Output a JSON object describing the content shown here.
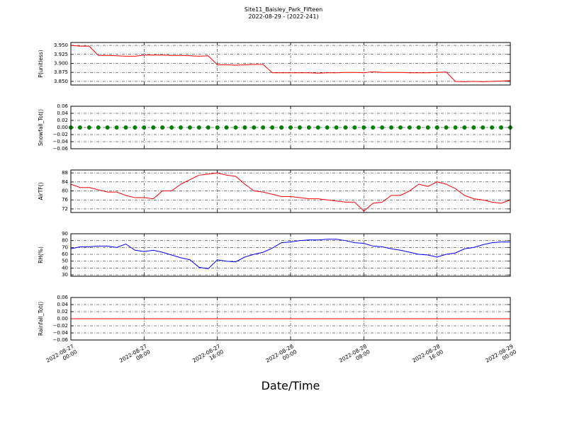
{
  "title": "Site11_Baisley_Park_Fifteen",
  "subtitle": "2022-08-29 - (2022-241)",
  "x_label": "Date/Time",
  "chart_data": [
    {
      "type": "line",
      "y_label": "P(unitless)",
      "grid": true,
      "x": [
        "2022-08-27 00:00",
        "2022-08-27 01:00",
        "2022-08-27 02:00",
        "2022-08-27 03:00",
        "2022-08-27 04:00",
        "2022-08-27 05:00",
        "2022-08-27 06:00",
        "2022-08-27 07:00",
        "2022-08-27 08:00",
        "2022-08-27 09:00",
        "2022-08-27 10:00",
        "2022-08-27 11:00",
        "2022-08-27 12:00",
        "2022-08-27 13:00",
        "2022-08-27 14:00",
        "2022-08-27 15:00",
        "2022-08-27 16:00",
        "2022-08-27 17:00",
        "2022-08-27 18:00",
        "2022-08-27 19:00",
        "2022-08-27 20:00",
        "2022-08-27 21:00",
        "2022-08-27 22:00",
        "2022-08-27 23:00",
        "2022-08-28 00:00",
        "2022-08-28 01:00",
        "2022-08-28 02:00",
        "2022-08-28 03:00",
        "2022-08-28 04:00",
        "2022-08-28 05:00",
        "2022-08-28 06:00",
        "2022-08-28 07:00",
        "2022-08-28 08:00",
        "2022-08-28 09:00",
        "2022-08-28 10:00",
        "2022-08-28 11:00",
        "2022-08-28 12:00",
        "2022-08-28 13:00",
        "2022-08-28 14:00",
        "2022-08-28 15:00",
        "2022-08-28 16:00",
        "2022-08-28 17:00",
        "2022-08-28 18:00",
        "2022-08-28 19:00",
        "2022-08-28 20:00",
        "2022-08-28 21:00",
        "2022-08-28 22:00",
        "2022-08-28 23:00",
        "2022-08-29 00:00"
      ],
      "series": [
        {
          "color": "#ff0000",
          "values": [
            3.95,
            3.948,
            3.948,
            3.922,
            3.922,
            3.921,
            3.92,
            3.92,
            3.923,
            3.923,
            3.923,
            3.922,
            3.922,
            3.921,
            3.92,
            3.921,
            3.896,
            3.896,
            3.895,
            3.896,
            3.897,
            3.897,
            3.874,
            3.874,
            3.874,
            3.874,
            3.874,
            3.873,
            3.874,
            3.874,
            3.875,
            3.875,
            3.874,
            3.877,
            3.875,
            3.875,
            3.875,
            3.874,
            3.874,
            3.874,
            3.875,
            3.876,
            3.85,
            3.849,
            3.85,
            3.849,
            3.85,
            3.851,
            3.852
          ]
        }
      ],
      "xlim": [
        "2022-08-27 00:00",
        "2022-08-29 00:00"
      ],
      "xticks": [
        "2022-08-27 00:00",
        "2022-08-27 08:00",
        "2022-08-27 16:00",
        "2022-08-28 00:00",
        "2022-08-28 08:00",
        "2022-08-28 16:00",
        "2022-08-29 00:00"
      ],
      "ylim": [
        3.84,
        3.958
      ],
      "yticks": [
        {
          "value": 3.85,
          "label": "3.850"
        },
        {
          "value": 3.875,
          "label": "3.875"
        },
        {
          "value": 3.9,
          "label": "3.900"
        },
        {
          "value": 3.925,
          "label": "3.925"
        },
        {
          "value": 3.95,
          "label": "3.950"
        }
      ]
    },
    {
      "type": "scatter",
      "y_label": "Snowfall_Tot()",
      "grid": true,
      "x": [
        "2022-08-27 00:00",
        "2022-08-27 01:00",
        "2022-08-27 02:00",
        "2022-08-27 03:00",
        "2022-08-27 04:00",
        "2022-08-27 05:00",
        "2022-08-27 06:00",
        "2022-08-27 07:00",
        "2022-08-27 08:00",
        "2022-08-27 09:00",
        "2022-08-27 10:00",
        "2022-08-27 11:00",
        "2022-08-27 12:00",
        "2022-08-27 13:00",
        "2022-08-27 14:00",
        "2022-08-27 15:00",
        "2022-08-27 16:00",
        "2022-08-27 17:00",
        "2022-08-27 18:00",
        "2022-08-27 19:00",
        "2022-08-27 20:00",
        "2022-08-27 21:00",
        "2022-08-27 22:00",
        "2022-08-27 23:00",
        "2022-08-28 00:00",
        "2022-08-28 01:00",
        "2022-08-28 02:00",
        "2022-08-28 03:00",
        "2022-08-28 04:00",
        "2022-08-28 05:00",
        "2022-08-28 06:00",
        "2022-08-28 07:00",
        "2022-08-28 08:00",
        "2022-08-28 09:00",
        "2022-08-28 10:00",
        "2022-08-28 11:00",
        "2022-08-28 12:00",
        "2022-08-28 13:00",
        "2022-08-28 14:00",
        "2022-08-28 15:00",
        "2022-08-28 16:00",
        "2022-08-28 17:00",
        "2022-08-28 18:00",
        "2022-08-28 19:00",
        "2022-08-28 20:00",
        "2022-08-28 21:00",
        "2022-08-28 22:00",
        "2022-08-28 23:00",
        "2022-08-29 00:00"
      ],
      "series": [
        {
          "color": "#008000",
          "values": [
            0,
            0,
            0,
            0,
            0,
            0,
            0,
            0,
            0,
            0,
            0,
            0,
            0,
            0,
            0,
            0,
            0,
            0,
            0,
            0,
            0,
            0,
            0,
            0,
            0,
            0,
            0,
            0,
            0,
            0,
            0,
            0,
            0,
            0,
            0,
            0,
            0,
            0,
            0,
            0,
            0,
            0,
            0,
            0,
            0,
            0,
            0,
            0,
            0
          ]
        }
      ],
      "xlim": [
        "2022-08-27 00:00",
        "2022-08-29 00:00"
      ],
      "xticks": [
        "2022-08-27 00:00",
        "2022-08-27 08:00",
        "2022-08-27 16:00",
        "2022-08-28 00:00",
        "2022-08-28 08:00",
        "2022-08-28 16:00",
        "2022-08-29 00:00"
      ],
      "ylim": [
        -0.06,
        0.06
      ],
      "yticks": [
        {
          "value": -0.06,
          "label": "−0.06"
        },
        {
          "value": -0.04,
          "label": "−0.04"
        },
        {
          "value": -0.02,
          "label": "−0.02"
        },
        {
          "value": 0,
          "label": "0.00"
        },
        {
          "value": 0.02,
          "label": "0.02"
        },
        {
          "value": 0.04,
          "label": "0.04"
        },
        {
          "value": 0.06,
          "label": "0.06"
        }
      ]
    },
    {
      "type": "line",
      "y_label": "AirTF()",
      "grid": true,
      "x": [
        "2022-08-27 00:00",
        "2022-08-27 01:00",
        "2022-08-27 02:00",
        "2022-08-27 03:00",
        "2022-08-27 04:00",
        "2022-08-27 05:00",
        "2022-08-27 06:00",
        "2022-08-27 07:00",
        "2022-08-27 08:00",
        "2022-08-27 09:00",
        "2022-08-27 10:00",
        "2022-08-27 11:00",
        "2022-08-27 12:00",
        "2022-08-27 13:00",
        "2022-08-27 14:00",
        "2022-08-27 15:00",
        "2022-08-27 16:00",
        "2022-08-27 17:00",
        "2022-08-27 18:00",
        "2022-08-27 19:00",
        "2022-08-27 20:00",
        "2022-08-27 21:00",
        "2022-08-27 22:00",
        "2022-08-27 23:00",
        "2022-08-28 00:00",
        "2022-08-28 01:00",
        "2022-08-28 02:00",
        "2022-08-28 03:00",
        "2022-08-28 04:00",
        "2022-08-28 05:00",
        "2022-08-28 06:00",
        "2022-08-28 07:00",
        "2022-08-28 08:00",
        "2022-08-28 09:00",
        "2022-08-28 10:00",
        "2022-08-28 11:00",
        "2022-08-28 12:00",
        "2022-08-28 13:00",
        "2022-08-28 14:00",
        "2022-08-28 15:00",
        "2022-08-28 16:00",
        "2022-08-28 17:00",
        "2022-08-28 18:00",
        "2022-08-28 19:00",
        "2022-08-28 20:00",
        "2022-08-28 21:00",
        "2022-08-28 22:00",
        "2022-08-28 23:00",
        "2022-08-29 00:00"
      ],
      "series": [
        {
          "color": "#ff0000",
          "values": [
            83,
            81.5,
            81.5,
            80.5,
            79.5,
            79.5,
            78,
            77,
            77,
            76.5,
            80,
            80,
            83,
            85,
            87,
            87.5,
            88,
            87,
            86.5,
            83,
            80,
            79.5,
            78.5,
            77.5,
            77.5,
            77,
            76.5,
            76.5,
            76,
            75.5,
            75,
            75,
            71,
            74.5,
            75,
            78,
            78,
            80,
            83,
            82,
            84,
            83,
            81,
            78,
            76.5,
            76,
            75,
            74.5,
            76
          ]
        }
      ],
      "xlim": [
        "2022-08-27 00:00",
        "2022-08-29 00:00"
      ],
      "xticks": [
        "2022-08-27 00:00",
        "2022-08-27 08:00",
        "2022-08-27 16:00",
        "2022-08-28 00:00",
        "2022-08-28 08:00",
        "2022-08-28 16:00",
        "2022-08-29 00:00"
      ],
      "ylim": [
        70.4,
        89.3
      ],
      "yticks": [
        72,
        76,
        80,
        84,
        88
      ]
    },
    {
      "type": "line",
      "y_label": "RH(%)",
      "grid": true,
      "x": [
        "2022-08-27 00:00",
        "2022-08-27 01:00",
        "2022-08-27 02:00",
        "2022-08-27 03:00",
        "2022-08-27 04:00",
        "2022-08-27 05:00",
        "2022-08-27 06:00",
        "2022-08-27 07:00",
        "2022-08-27 08:00",
        "2022-08-27 09:00",
        "2022-08-27 10:00",
        "2022-08-27 11:00",
        "2022-08-27 12:00",
        "2022-08-27 13:00",
        "2022-08-27 14:00",
        "2022-08-27 15:00",
        "2022-08-27 16:00",
        "2022-08-27 17:00",
        "2022-08-27 18:00",
        "2022-08-27 19:00",
        "2022-08-27 20:00",
        "2022-08-27 21:00",
        "2022-08-27 22:00",
        "2022-08-27 23:00",
        "2022-08-28 00:00",
        "2022-08-28 01:00",
        "2022-08-28 02:00",
        "2022-08-28 03:00",
        "2022-08-28 04:00",
        "2022-08-28 05:00",
        "2022-08-28 06:00",
        "2022-08-28 07:00",
        "2022-08-28 08:00",
        "2022-08-28 09:00",
        "2022-08-28 10:00",
        "2022-08-28 11:00",
        "2022-08-28 12:00",
        "2022-08-28 13:00",
        "2022-08-28 14:00",
        "2022-08-28 15:00",
        "2022-08-28 16:00",
        "2022-08-28 17:00",
        "2022-08-28 18:00",
        "2022-08-28 19:00",
        "2022-08-28 20:00",
        "2022-08-28 21:00",
        "2022-08-28 22:00",
        "2022-08-28 23:00",
        "2022-08-29 00:00"
      ],
      "series": [
        {
          "color": "#0000ff",
          "values": [
            68,
            71,
            71,
            72,
            72,
            70,
            75,
            66,
            64,
            66,
            63,
            59,
            55,
            52,
            41,
            39,
            52,
            50,
            49,
            56,
            60,
            63,
            69,
            77,
            78,
            80,
            81,
            81,
            82,
            82,
            80,
            77,
            76,
            72,
            71,
            68,
            66,
            63,
            60,
            59,
            56,
            60,
            62,
            68,
            70,
            74,
            77,
            78,
            78
          ]
        }
      ],
      "xlim": [
        "2022-08-27 00:00",
        "2022-08-29 00:00"
      ],
      "xticks": [
        "2022-08-27 00:00",
        "2022-08-27 08:00",
        "2022-08-27 16:00",
        "2022-08-28 00:00",
        "2022-08-28 08:00",
        "2022-08-28 16:00",
        "2022-08-29 00:00"
      ],
      "ylim": [
        28,
        90
      ],
      "yticks": [
        30,
        40,
        50,
        60,
        70,
        80,
        90
      ]
    },
    {
      "type": "line",
      "y_label": "Rainfall_Tot()",
      "grid": true,
      "x": [
        "2022-08-27 00:00",
        "2022-08-27 01:00",
        "2022-08-27 02:00",
        "2022-08-27 03:00",
        "2022-08-27 04:00",
        "2022-08-27 05:00",
        "2022-08-27 06:00",
        "2022-08-27 07:00",
        "2022-08-27 08:00",
        "2022-08-27 09:00",
        "2022-08-27 10:00",
        "2022-08-27 11:00",
        "2022-08-27 12:00",
        "2022-08-27 13:00",
        "2022-08-27 14:00",
        "2022-08-27 15:00",
        "2022-08-27 16:00",
        "2022-08-27 17:00",
        "2022-08-27 18:00",
        "2022-08-27 19:00",
        "2022-08-27 20:00",
        "2022-08-27 21:00",
        "2022-08-27 22:00",
        "2022-08-27 23:00",
        "2022-08-28 00:00",
        "2022-08-28 01:00",
        "2022-08-28 02:00",
        "2022-08-28 03:00",
        "2022-08-28 04:00",
        "2022-08-28 05:00",
        "2022-08-28 06:00",
        "2022-08-28 07:00",
        "2022-08-28 08:00",
        "2022-08-28 09:00",
        "2022-08-28 10:00",
        "2022-08-28 11:00",
        "2022-08-28 12:00",
        "2022-08-28 13:00",
        "2022-08-28 14:00",
        "2022-08-28 15:00",
        "2022-08-28 16:00",
        "2022-08-28 17:00",
        "2022-08-28 18:00",
        "2022-08-28 19:00",
        "2022-08-28 20:00",
        "2022-08-28 21:00",
        "2022-08-28 22:00",
        "2022-08-28 23:00",
        "2022-08-29 00:00"
      ],
      "series": [
        {
          "color": "#ff0000",
          "values": [
            0,
            0,
            0,
            0,
            0,
            0,
            0,
            0,
            0,
            0,
            0,
            0,
            0,
            0,
            0,
            0,
            0,
            0,
            0,
            0,
            0,
            0,
            0,
            0,
            0,
            0,
            0,
            0,
            0,
            0,
            0,
            0,
            0,
            0,
            0,
            0,
            0,
            0,
            0,
            0,
            0,
            0,
            0,
            0,
            0,
            0,
            0,
            0,
            0
          ]
        }
      ],
      "xlim": [
        "2022-08-27 00:00",
        "2022-08-29 00:00"
      ],
      "xticks": [
        "2022-08-27 00:00",
        "2022-08-27 08:00",
        "2022-08-27 16:00",
        "2022-08-28 00:00",
        "2022-08-28 08:00",
        "2022-08-28 16:00",
        "2022-08-29 00:00"
      ],
      "ylim": [
        -0.06,
        0.06
      ],
      "yticks": [
        {
          "value": -0.06,
          "label": "−0.06"
        },
        {
          "value": -0.04,
          "label": "−0.04"
        },
        {
          "value": -0.02,
          "label": "−0.02"
        },
        {
          "value": 0,
          "label": "0.00"
        },
        {
          "value": 0.02,
          "label": "0.02"
        },
        {
          "value": 0.04,
          "label": "0.04"
        },
        {
          "value": 0.06,
          "label": "0.06"
        }
      ]
    }
  ]
}
